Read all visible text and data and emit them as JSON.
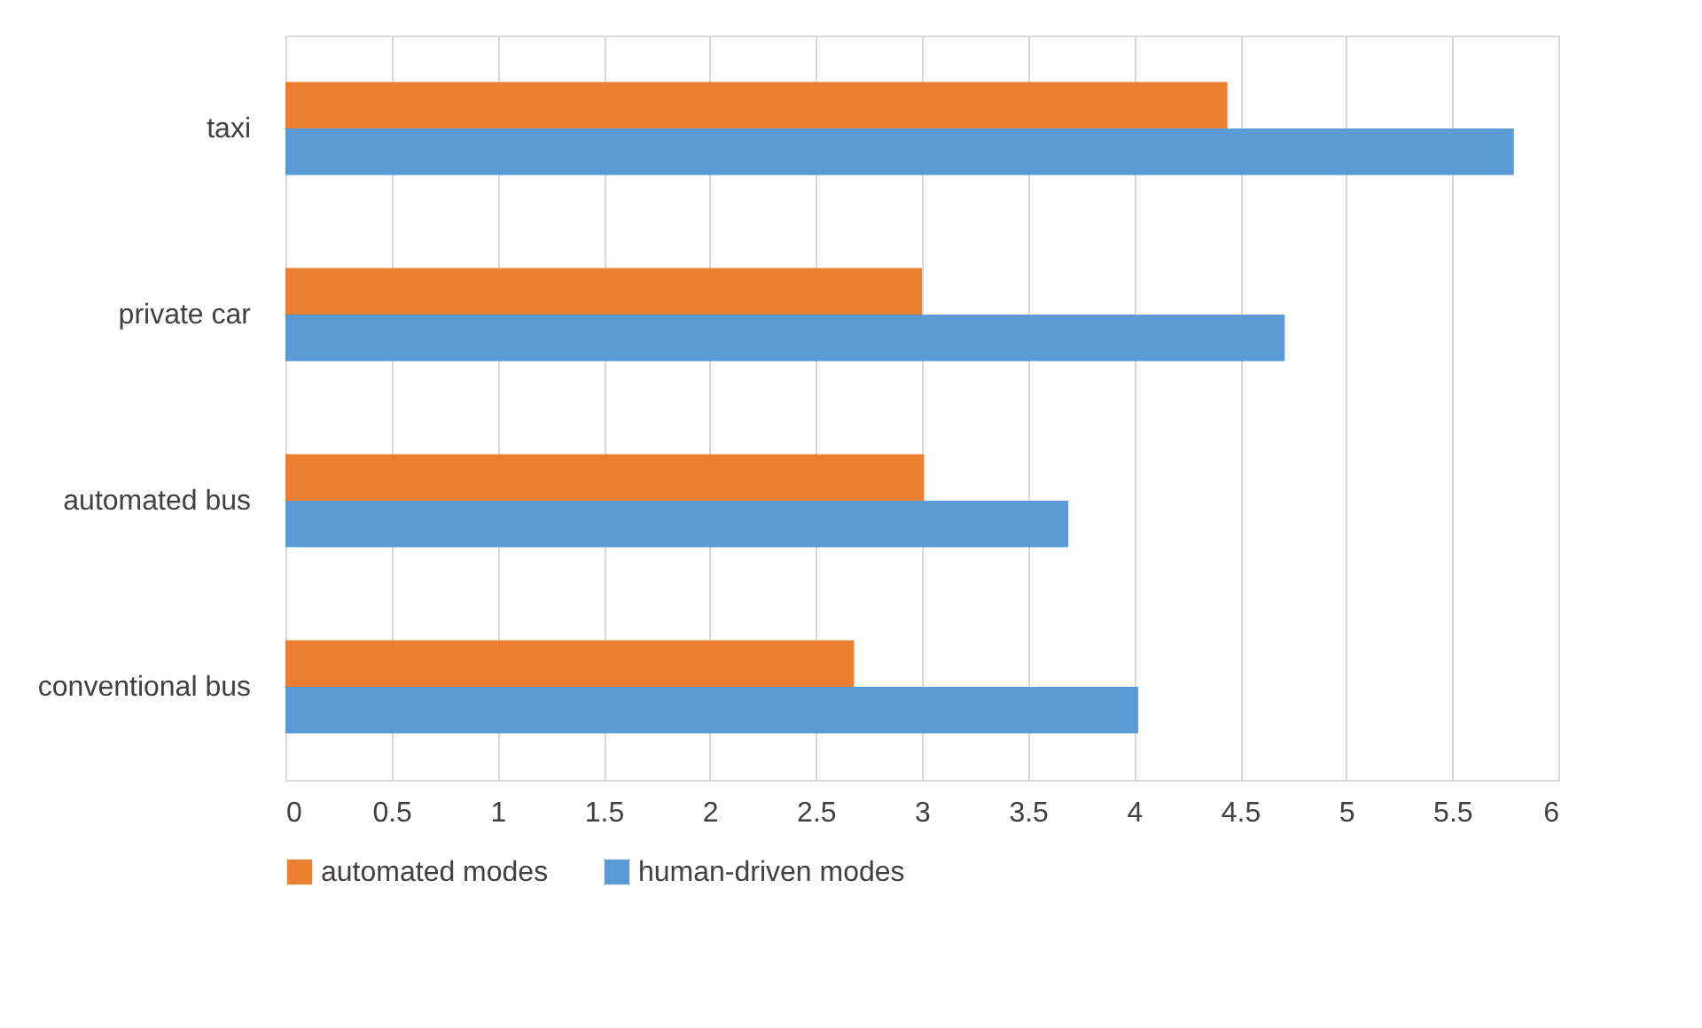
{
  "chart_data": {
    "type": "bar",
    "orientation": "horizontal",
    "categories": [
      "taxi",
      "private car",
      "automated bus",
      "conventional bus"
    ],
    "series": [
      {
        "name": "automated modes",
        "color": "#ed7d31",
        "values": [
          4.44,
          3.0,
          3.01,
          2.68
        ]
      },
      {
        "name": "human-driven modes",
        "color": "#5b9bd5",
        "values": [
          5.79,
          4.71,
          3.69,
          4.02
        ]
      }
    ],
    "xlim": [
      0,
      6
    ],
    "xticks": [
      0,
      0.5,
      1,
      1.5,
      2,
      2.5,
      3,
      3.5,
      4,
      4.5,
      5,
      5.5,
      6
    ],
    "grid": "x",
    "legend": "bottom"
  }
}
